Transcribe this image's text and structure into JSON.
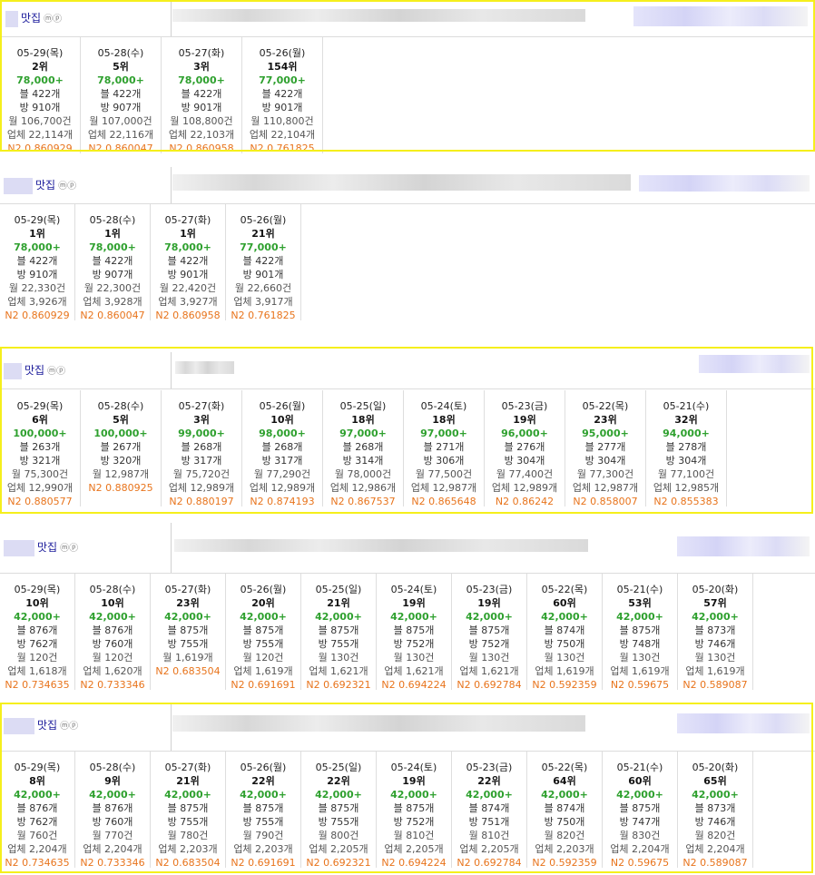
{
  "blocks": [
    {
      "keyword": "맛집",
      "icons": "ⓜⓟ",
      "cards": [
        {
          "date": "05-29(목)",
          "rank": "2위",
          "price": "78,000+",
          "blog": "블 422개",
          "cafe": "방 910개",
          "month": "월 106,700건",
          "biz": "업체 22,114개",
          "n2": "N2 0.860929"
        },
        {
          "date": "05-28(수)",
          "rank": "5위",
          "price": "78,000+",
          "blog": "블 422개",
          "cafe": "방 907개",
          "month": "월 107,000건",
          "biz": "업체 22,116개",
          "n2": "N2 0.860047"
        },
        {
          "date": "05-27(화)",
          "rank": "3위",
          "price": "78,000+",
          "blog": "블 422개",
          "cafe": "방 901개",
          "month": "월 108,800건",
          "biz": "업체 22,103개",
          "n2": "N2 0.860958"
        },
        {
          "date": "05-26(월)",
          "rank": "154위",
          "price": "77,000+",
          "blog": "블 422개",
          "cafe": "방 901개",
          "month": "월 110,800건",
          "biz": "업체 22,104개",
          "n2": "N2 0.761825"
        }
      ]
    },
    {
      "keyword": "맛집",
      "icons": "ⓜⓟ",
      "cards": [
        {
          "date": "05-29(목)",
          "rank": "1위",
          "price": "78,000+",
          "blog": "블 422개",
          "cafe": "방 910개",
          "month": "월 22,330건",
          "biz": "업체 3,926개",
          "n2": "N2 0.860929"
        },
        {
          "date": "05-28(수)",
          "rank": "1위",
          "price": "78,000+",
          "blog": "블 422개",
          "cafe": "방 907개",
          "month": "월 22,300건",
          "biz": "업체 3,928개",
          "n2": "N2 0.860047"
        },
        {
          "date": "05-27(화)",
          "rank": "1위",
          "price": "78,000+",
          "blog": "블 422개",
          "cafe": "방 901개",
          "month": "월 22,420건",
          "biz": "업체 3,927개",
          "n2": "N2 0.860958"
        },
        {
          "date": "05-26(월)",
          "rank": "21위",
          "price": "77,000+",
          "blog": "블 422개",
          "cafe": "방 901개",
          "month": "월 22,660건",
          "biz": "업체 3,917개",
          "n2": "N2 0.761825"
        }
      ]
    },
    {
      "keyword": "맛집",
      "icons": "ⓜⓟ",
      "cards": [
        {
          "date": "05-29(목)",
          "rank": "6위",
          "price": "100,000+",
          "blog": "블 263개",
          "cafe": "방 321개",
          "month": "월 75,300건",
          "biz": "업체 12,990개",
          "n2": "N2 0.880577"
        },
        {
          "date": "05-28(수)",
          "rank": "5위",
          "price": "100,000+",
          "blog": "블 267개",
          "cafe": "방 320개",
          "month": "월 12,987개",
          "biz": "",
          "n2": "N2 0.880925"
        },
        {
          "date": "05-27(화)",
          "rank": "3위",
          "price": "99,000+",
          "blog": "블 268개",
          "cafe": "방 317개",
          "month": "월 75,720건",
          "biz": "업체 12,989개",
          "n2": "N2 0.880197"
        },
        {
          "date": "05-26(월)",
          "rank": "10위",
          "price": "98,000+",
          "blog": "블 268개",
          "cafe": "방 317개",
          "month": "월 77,290건",
          "biz": "업체 12,989개",
          "n2": "N2 0.874193"
        },
        {
          "date": "05-25(일)",
          "rank": "18위",
          "price": "97,000+",
          "blog": "블 268개",
          "cafe": "방 314개",
          "month": "월 78,000건",
          "biz": "업체 12,986개",
          "n2": "N2 0.867537"
        },
        {
          "date": "05-24(토)",
          "rank": "18위",
          "price": "97,000+",
          "blog": "블 271개",
          "cafe": "방 306개",
          "month": "월 77,500건",
          "biz": "업체 12,987개",
          "n2": "N2 0.865648"
        },
        {
          "date": "05-23(금)",
          "rank": "19위",
          "price": "96,000+",
          "blog": "블 276개",
          "cafe": "방 304개",
          "month": "월 77,400건",
          "biz": "업체 12,989개",
          "n2": "N2 0.86242"
        },
        {
          "date": "05-22(목)",
          "rank": "23위",
          "price": "95,000+",
          "blog": "블 277개",
          "cafe": "방 304개",
          "month": "월 77,300건",
          "biz": "업체 12,987개",
          "n2": "N2 0.858007"
        },
        {
          "date": "05-21(수)",
          "rank": "32위",
          "price": "94,000+",
          "blog": "블 278개",
          "cafe": "방 304개",
          "month": "월 77,100건",
          "biz": "업체 12,985개",
          "n2": "N2 0.855383"
        }
      ]
    },
    {
      "keyword": "맛집",
      "icons": "ⓜⓟ",
      "cards": [
        {
          "date": "05-29(목)",
          "rank": "10위",
          "price": "42,000+",
          "blog": "블 876개",
          "cafe": "방 762개",
          "month": "월 120건",
          "biz": "업체 1,618개",
          "n2": "N2 0.734635"
        },
        {
          "date": "05-28(수)",
          "rank": "10위",
          "price": "42,000+",
          "blog": "블 876개",
          "cafe": "방 760개",
          "month": "월 120건",
          "biz": "업체 1,620개",
          "n2": "N2 0.733346"
        },
        {
          "date": "05-27(화)",
          "rank": "23위",
          "price": "42,000+",
          "blog": "블 875개",
          "cafe": "방 755개",
          "month": "월 1,619개",
          "biz": "",
          "n2": "N2 0.683504"
        },
        {
          "date": "05-26(월)",
          "rank": "20위",
          "price": "42,000+",
          "blog": "블 875개",
          "cafe": "방 755개",
          "month": "월 120건",
          "biz": "업체 1,619개",
          "n2": "N2 0.691691"
        },
        {
          "date": "05-25(일)",
          "rank": "21위",
          "price": "42,000+",
          "blog": "블 875개",
          "cafe": "방 755개",
          "month": "월 130건",
          "biz": "업체 1,621개",
          "n2": "N2 0.692321"
        },
        {
          "date": "05-24(토)",
          "rank": "19위",
          "price": "42,000+",
          "blog": "블 875개",
          "cafe": "방 752개",
          "month": "월 130건",
          "biz": "업체 1,621개",
          "n2": "N2 0.694224"
        },
        {
          "date": "05-23(금)",
          "rank": "19위",
          "price": "42,000+",
          "blog": "블 875개",
          "cafe": "방 752개",
          "month": "월 130건",
          "biz": "업체 1,621개",
          "n2": "N2 0.692784"
        },
        {
          "date": "05-22(목)",
          "rank": "60위",
          "price": "42,000+",
          "blog": "블 874개",
          "cafe": "방 750개",
          "month": "월 130건",
          "biz": "업체 1,619개",
          "n2": "N2 0.592359"
        },
        {
          "date": "05-21(수)",
          "rank": "53위",
          "price": "42,000+",
          "blog": "블 875개",
          "cafe": "방 748개",
          "month": "월 130건",
          "biz": "업체 1,619개",
          "n2": "N2 0.59675"
        },
        {
          "date": "05-20(화)",
          "rank": "57위",
          "price": "42,000+",
          "blog": "블 873개",
          "cafe": "방 746개",
          "month": "월 130건",
          "biz": "업체 1,619개",
          "n2": "N2 0.589087"
        }
      ]
    },
    {
      "keyword": "맛집",
      "icons": "ⓜⓟ",
      "cards": [
        {
          "date": "05-29(목)",
          "rank": "8위",
          "price": "42,000+",
          "blog": "블 876개",
          "cafe": "방 762개",
          "month": "월 760건",
          "biz": "업체 2,204개",
          "n2": "N2 0.734635"
        },
        {
          "date": "05-28(수)",
          "rank": "9위",
          "price": "42,000+",
          "blog": "블 876개",
          "cafe": "방 760개",
          "month": "월 770건",
          "biz": "업체 2,204개",
          "n2": "N2 0.733346"
        },
        {
          "date": "05-27(화)",
          "rank": "21위",
          "price": "42,000+",
          "blog": "블 875개",
          "cafe": "방 755개",
          "month": "월 780건",
          "biz": "업체 2,203개",
          "n2": "N2 0.683504"
        },
        {
          "date": "05-26(월)",
          "rank": "22위",
          "price": "42,000+",
          "blog": "블 875개",
          "cafe": "방 755개",
          "month": "월 790건",
          "biz": "업체 2,203개",
          "n2": "N2 0.691691"
        },
        {
          "date": "05-25(일)",
          "rank": "22위",
          "price": "42,000+",
          "blog": "블 875개",
          "cafe": "방 755개",
          "month": "월 800건",
          "biz": "업체 2,205개",
          "n2": "N2 0.692321"
        },
        {
          "date": "05-24(토)",
          "rank": "19위",
          "price": "42,000+",
          "blog": "블 875개",
          "cafe": "방 752개",
          "month": "월 810건",
          "biz": "업체 2,205개",
          "n2": "N2 0.694224"
        },
        {
          "date": "05-23(금)",
          "rank": "22위",
          "price": "42,000+",
          "blog": "블 874개",
          "cafe": "방 751개",
          "month": "월 810건",
          "biz": "업체 2,205개",
          "n2": "N2 0.692784"
        },
        {
          "date": "05-22(목)",
          "rank": "64위",
          "price": "42,000+",
          "blog": "블 874개",
          "cafe": "방 750개",
          "month": "월 820건",
          "biz": "업체 2,203개",
          "n2": "N2 0.592359"
        },
        {
          "date": "05-21(수)",
          "rank": "60위",
          "price": "42,000+",
          "blog": "블 875개",
          "cafe": "방 747개",
          "month": "월 830건",
          "biz": "업체 2,204개",
          "n2": "N2 0.59675"
        },
        {
          "date": "05-20(화)",
          "rank": "65위",
          "price": "42,000+",
          "blog": "블 873개",
          "cafe": "방 746개",
          "month": "월 820건",
          "biz": "업체 2,204개",
          "n2": "N2 0.589087"
        }
      ]
    }
  ]
}
